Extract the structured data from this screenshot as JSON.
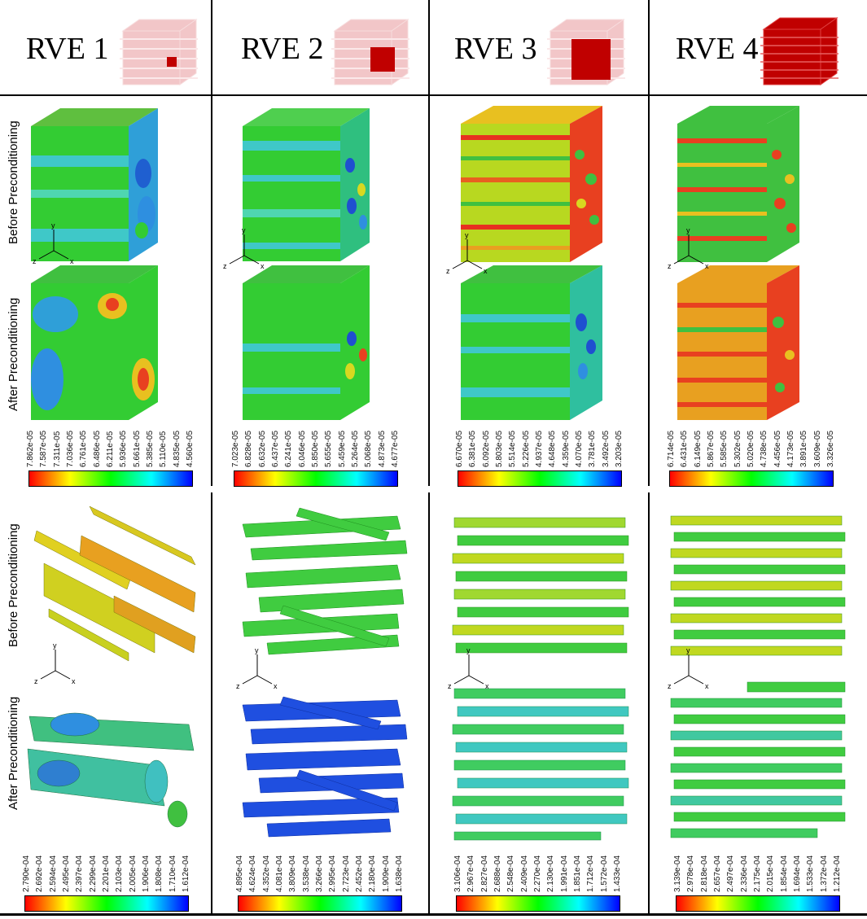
{
  "columns": [
    {
      "title": "RVE 1"
    },
    {
      "title": "RVE 2"
    },
    {
      "title": "RVE 3"
    },
    {
      "title": "RVE 4"
    }
  ],
  "row_labels": {
    "before": "Before Preconditioning",
    "after": "After Preconditioning"
  },
  "axis_labels": {
    "y": "y",
    "z": "z",
    "x": "x"
  },
  "colorbars_top": [
    {
      "ticks": [
        "7.862e-05",
        "7.587e-05",
        "7.311e-05",
        "7.036e-05",
        "6.761e-05",
        "6.486e-05",
        "6.211e-05",
        "5.936e-05",
        "5.661e-05",
        "5.385e-05",
        "5.110e-05",
        "4.835e-05",
        "4.560e-05"
      ]
    },
    {
      "ticks": [
        "7.023e-05",
        "6.828e-05",
        "6.632e-05",
        "6.437e-05",
        "6.241e-05",
        "6.046e-05",
        "5.850e-05",
        "5.655e-05",
        "5.459e-05",
        "5.264e-05",
        "5.068e-05",
        "4.873e-05",
        "4.677e-05"
      ]
    },
    {
      "ticks": [
        "6.670e-05",
        "6.381e-05",
        "6.092e-05",
        "5.803e-05",
        "5.514e-05",
        "5.226e-05",
        "4.937e-05",
        "4.648e-05",
        "4.359e-05",
        "4.070e-05",
        "3.781e-05",
        "3.492e-05",
        "3.203e-05"
      ]
    },
    {
      "ticks": [
        "6.714e-05",
        "6.431e-05",
        "6.149e-05",
        "5.867e-05",
        "5.585e-05",
        "5.302e-05",
        "5.020e-05",
        "4.738e-05",
        "4.456e-05",
        "4.173e-05",
        "3.891e-05",
        "3.609e-05",
        "3.326e-05"
      ]
    }
  ],
  "colorbars_bottom": [
    {
      "ticks": [
        "2.790e-04",
        "2.692e-04",
        "2.594e-04",
        "2.495e-04",
        "2.397e-04",
        "2.299e-04",
        "2.201e-04",
        "2.103e-04",
        "2.005e-04",
        "1.906e-04",
        "1.808e-04",
        "1.710e-04",
        "1.612e-04"
      ]
    },
    {
      "ticks": [
        "4.895e-04",
        "4.624e-04",
        "4.352e-04",
        "4.081e-04",
        "3.809e-04",
        "3.538e-04",
        "3.266e-04",
        "2.995e-04",
        "2.723e-04",
        "2.452e-04",
        "2.180e-04",
        "1.909e-04",
        "1.638e-04"
      ]
    },
    {
      "ticks": [
        "3.106e-04",
        "2.967e-04",
        "2.827e-04",
        "2.688e-04",
        "2.548e-04",
        "2.409e-04",
        "2.270e-04",
        "2.130e-04",
        "1.991e-04",
        "1.851e-04",
        "1.712e-04",
        "1.572e-04",
        "1.433e-04"
      ]
    },
    {
      "ticks": [
        "3.139e-04",
        "2.978e-04",
        "2.818e-04",
        "2.657e-04",
        "2.497e-04",
        "2.336e-04",
        "2.175e-04",
        "2.015e-04",
        "1.854e-04",
        "1.694e-04",
        "1.533e-04",
        "1.372e-04",
        "1.212e-04"
      ]
    }
  ],
  "colors": {
    "cbar_gradient": [
      "#ff0000",
      "#ff8000",
      "#ffff00",
      "#80ff00",
      "#00ff00",
      "#00ff80",
      "#00ffff",
      "#0080ff",
      "#0000ff"
    ],
    "thumb_light": "#f2c6c8",
    "thumb_dark": "#c00000"
  }
}
